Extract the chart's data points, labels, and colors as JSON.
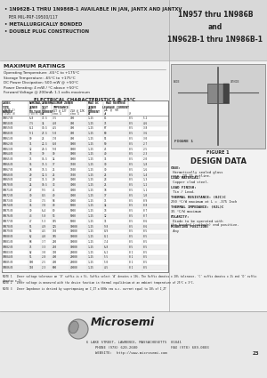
{
  "bg_color": "#e0e0e0",
  "white": "#ffffff",
  "black": "#000000",
  "dark_gray": "#222222",
  "mid_gray": "#888888",
  "light_gray": "#cccccc",
  "panel_bg": "#d4d4d4",
  "title_right_lines": [
    "1N957 thru 1N986B",
    "and",
    "1N962B-1 thru 1N986B-1"
  ],
  "bullet1": " 1N962B-1 THRU 1N986B-1 AVAILABLE IN JAN, JANTX AND JANTXV",
  "bullet1b": "   PER MIL-PRF-19500/117",
  "bullet2": " METALLURGICALLY BONDED",
  "bullet3": " DOUBLE PLUG CONSTRUCTION",
  "max_ratings_title": "MAXIMUM RATINGS",
  "max_ratings": [
    "Operating Temperature: -65°C to +175°C",
    "Storage Temperature: -65°C to +175°C",
    "DC Power Dissipation: 500 mW @ +50°C",
    "Power Derating: 4 mW / °C above +50°C",
    "Forward Voltage @ 200mA: 1.1 volts maximum"
  ],
  "elec_char_title": "ELECTRICAL CHARACTERISTICS @ 25°C",
  "table_rows": [
    [
      "1N957/B",
      "6.8",
      "37.5",
      "3.5",
      "700",
      "1.25",
      "200",
      "81",
      "0.5",
      "5.2"
    ],
    [
      "1N958/B",
      "7.5",
      "34",
      "4.0",
      "700",
      "1.25",
      "200",
      "75",
      "0.5",
      "4-6"
    ],
    [
      "1N959/B",
      "8.2",
      "30.5",
      "4.5",
      "700",
      "1.25",
      "200",
      "67",
      "0.5",
      "3-8"
    ],
    [
      "1N960/B",
      "9.1",
      "27.5",
      "5.0",
      "700",
      "1.25",
      "200",
      "60",
      "0.5",
      "3-6"
    ],
    [
      "1N961/B",
      "10",
      "25",
      "7.0",
      "700",
      "1.25",
      "200",
      "55",
      "0.5",
      "3.0"
    ],
    [
      "1N962/B",
      "11",
      "22.5",
      "8.0",
      "1000",
      "1.25",
      "200",
      "50",
      "0.5",
      "2.7"
    ],
    [
      "1N963/B",
      "12",
      "20.5",
      "9.0",
      "1000",
      "1.25",
      "200",
      "45",
      "0.5",
      "2.5"
    ],
    [
      "1N964/B",
      "13",
      "19",
      "10",
      "1000",
      "1.25",
      "200",
      "40",
      "0.5",
      "2.3"
    ],
    [
      "1N965/B",
      "15",
      "16.5",
      "14",
      "1000",
      "1.25",
      "200",
      "35",
      "0.5",
      "2.0"
    ],
    [
      "1N966/B",
      "16",
      "15.5",
      "17",
      "1500",
      "1.25",
      "200",
      "30",
      "0.5",
      "1.8"
    ],
    [
      "1N967/B",
      "18",
      "13.5",
      "21",
      "1500",
      "1.25",
      "200",
      "30",
      "0.5",
      "1.6"
    ],
    [
      "1N968/B",
      "20",
      "12.5",
      "25",
      "1500",
      "1.25",
      "200",
      "25",
      "0.5",
      "1.4"
    ],
    [
      "1N969/B",
      "22",
      "11.5",
      "29",
      "3000",
      "1.25",
      "200",
      "23",
      "0.5",
      "1.3"
    ],
    [
      "1N970/B",
      "24",
      "10.5",
      "33",
      "3000",
      "1.25",
      "200",
      "21",
      "0.5",
      "1.2"
    ],
    [
      "1N971/B",
      "27",
      "9.5",
      "41",
      "3000",
      "1.25",
      "200",
      "18",
      "0.5",
      "1.1"
    ],
    [
      "1N972/B",
      "30",
      "8.5",
      "49",
      "3000",
      "1.25",
      "200",
      "17",
      "0.5",
      "1.0"
    ],
    [
      "1N973/B",
      "33",
      "7.5",
      "58",
      "3000",
      "1.25",
      "200",
      "15",
      "0.5",
      "0.9"
    ],
    [
      "1N974/B",
      "36",
      "7.0",
      "70",
      "5000",
      "1.25",
      "200",
      "14",
      "0.5",
      "0.8"
    ],
    [
      "1N975/B",
      "39",
      "6.4",
      "80",
      "5000",
      "1.25",
      "200",
      "13",
      "0.5",
      "0.7"
    ],
    [
      "1N976/B",
      "43",
      "5.8",
      "93",
      "5000",
      "1.25",
      "200",
      "12",
      "0.5",
      "0.7"
    ],
    [
      "1N977/B",
      "47",
      "5.3",
      "105",
      "5000",
      "1.25",
      "200",
      "11",
      "0.5",
      "0.6"
    ],
    [
      "1N978/B",
      "51",
      "4.9",
      "125",
      "10000",
      "1.25",
      "200",
      "9.8",
      "0.5",
      "0.6"
    ],
    [
      "1N979/B",
      "56",
      "4.5",
      "150",
      "10000",
      "1.25",
      "200",
      "8.9",
      "0.5",
      "0.5"
    ],
    [
      "1N980/B",
      "62",
      "4.0",
      "185",
      "10000",
      "1.25",
      "200",
      "8.1",
      "0.5",
      "0.5"
    ],
    [
      "1N981/B",
      "68",
      "3.7",
      "230",
      "10000",
      "1.25",
      "200",
      "7.4",
      "0.5",
      "0.5"
    ],
    [
      "1N982/B",
      "75",
      "3.3",
      "270",
      "10000",
      "1.25",
      "200",
      "6.8",
      "0.5",
      "0.5"
    ],
    [
      "1N983/B",
      "82",
      "3.0",
      "330",
      "20000",
      "1.25",
      "200",
      "6.2",
      "0.1",
      "0.5"
    ],
    [
      "1N984/B",
      "91",
      "2.8",
      "400",
      "20000",
      "1.25",
      "200",
      "5.5",
      "0.1",
      "0.5"
    ],
    [
      "1N985/B",
      "100",
      "2.5",
      "490",
      "20000",
      "1.25",
      "200",
      "5.0",
      "0.1",
      "0.5"
    ],
    [
      "1N986/B",
      "110",
      "2.3",
      "600",
      "40000",
      "1.25",
      "200",
      "4.5",
      "0.1",
      "0.5"
    ]
  ],
  "note1": "NOTE 1   Zener voltage tolerance on 'D' suffix is ± 5%. Suffix select 'A' denotes ± 10%. The Suffix denotes ± 20% tolerance. 'C' suffix denotes ± 2% and 'D' suffix denotes ± 1%.",
  "note2": "NOTE 2   Zener voltage is measured with the device function in thermal equilibrium at an ambient temperature of 25°C ± 3°C.",
  "note3": "NOTE 3   Zener Impedance is derived by superimposing on I_ZT a 60Hz rms a.c. current equal to 10% of I_ZT",
  "design_data_title": "DESIGN DATA",
  "figure_label": "FIGURE 1",
  "design_items": [
    [
      "CASE:",
      " Hermetically sealed glass\ncase, DO-35 outline."
    ],
    [
      "LEAD MATERIAL:",
      " Copper clad steel."
    ],
    [
      "LEAD FINISH:",
      " Tin / Lead."
    ],
    [
      "THERMAL RESISTANCE: (θJC)C",
      "250 °C/W maximum at L = .375 Inch"
    ],
    [
      "THERMAL IMPEDANCE: (θJL)C",
      "35 °C/W maximum"
    ],
    [
      "POLARITY:",
      " Diode to be operated with\nthe banded (cathode) end positive."
    ],
    [
      "MOUNTING POSITION:",
      " Any"
    ]
  ],
  "footer_line1": "6 LAKE STREET, LAWRENCE, MASSACHUSETTS  01841",
  "footer_line2": "PHONE (978) 620-2600",
  "footer_fax": "FAX (978) 689-0803",
  "footer_line3": "WEBSITE:  http://www.microsemi.com",
  "footer_page": "23"
}
